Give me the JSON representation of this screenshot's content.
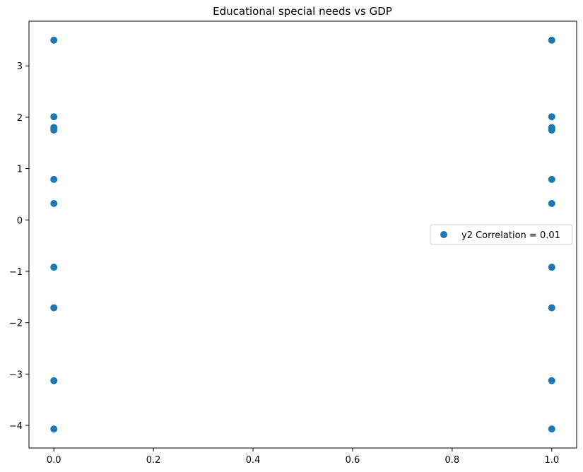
{
  "chart_data": {
    "type": "scatter",
    "title": "Educational special needs vs GDP",
    "xlabel": "",
    "ylabel": "",
    "xlim": [
      -0.05,
      1.05
    ],
    "ylim": [
      -4.44,
      3.87
    ],
    "x_ticks": [
      0.0,
      0.2,
      0.4,
      0.6,
      0.8,
      1.0
    ],
    "x_tick_labels": [
      "0.0",
      "0.2",
      "0.4",
      "0.6",
      "0.8",
      "1.0"
    ],
    "y_ticks": [
      -4,
      -3,
      -2,
      -1,
      0,
      1,
      2,
      3
    ],
    "y_tick_labels": [
      "−4",
      "−3",
      "−2",
      "−1",
      "0",
      "1",
      "2",
      "3"
    ],
    "grid": false,
    "legend": {
      "location": "center-right",
      "entries": [
        "y2 Correlation = 0.01"
      ]
    },
    "series": [
      {
        "name": "y2 Correlation = 0.01",
        "color": "#1f77b4",
        "points": [
          {
            "x": 0,
            "y": 3.5
          },
          {
            "x": 0,
            "y": 2.01
          },
          {
            "x": 0,
            "y": 1.8
          },
          {
            "x": 0,
            "y": 1.78
          },
          {
            "x": 0,
            "y": 1.75
          },
          {
            "x": 0,
            "y": 0.79
          },
          {
            "x": 0,
            "y": 0.32
          },
          {
            "x": 0,
            "y": -0.92
          },
          {
            "x": 0,
            "y": -1.71
          },
          {
            "x": 0,
            "y": -3.13
          },
          {
            "x": 0,
            "y": -4.07
          },
          {
            "x": 1,
            "y": 3.5
          },
          {
            "x": 1,
            "y": 2.01
          },
          {
            "x": 1,
            "y": 1.8
          },
          {
            "x": 1,
            "y": 1.78
          },
          {
            "x": 1,
            "y": 1.75
          },
          {
            "x": 1,
            "y": 0.79
          },
          {
            "x": 1,
            "y": 0.32
          },
          {
            "x": 1,
            "y": -0.92
          },
          {
            "x": 1,
            "y": -1.71
          },
          {
            "x": 1,
            "y": -3.13
          },
          {
            "x": 1,
            "y": -4.07
          }
        ]
      }
    ]
  }
}
